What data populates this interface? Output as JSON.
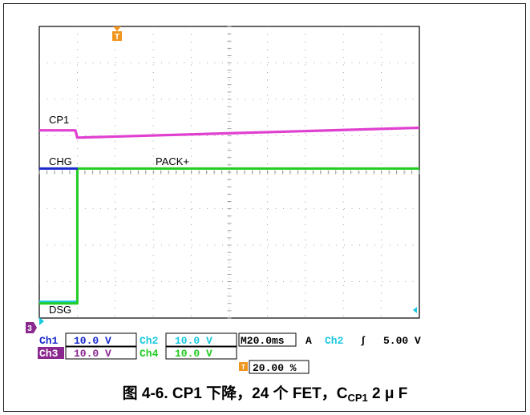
{
  "caption": {
    "prefix": "图 4-6. CP1 下降，24 个 FET，C",
    "subscript": "CP1",
    "suffix": " 2 μ F"
  },
  "chart_data": {
    "type": "line",
    "title": "",
    "x_unit": "ms",
    "x_range": [
      -20,
      180
    ],
    "y_unit": "div",
    "y_range": [
      -4,
      4
    ],
    "grid": true,
    "trigger_marker": "T",
    "series": [
      {
        "name": "CP1",
        "color": "#e040d0",
        "x": [
          -20,
          -1,
          0,
          180
        ],
        "y": [
          1.15,
          1.15,
          0.95,
          1.22
        ]
      },
      {
        "name": "CHG",
        "color": "#1a2acc",
        "x": [
          -20,
          0,
          0.2
        ],
        "y": [
          0.1,
          0.1,
          0.1
        ]
      },
      {
        "name": "PACK+",
        "color": "#22cc22",
        "x": [
          -20,
          0,
          0,
          180
        ],
        "y": [
          -3.6,
          -3.6,
          0.1,
          0.1
        ]
      },
      {
        "name": "DSG",
        "color": "#19c8e0",
        "x": [
          -20,
          0,
          0
        ],
        "y": [
          -3.55,
          -3.55,
          0.12
        ]
      }
    ]
  },
  "readout": {
    "ch1": {
      "label": "Ch1",
      "value": "10.0 V"
    },
    "ch2": {
      "label": "Ch2",
      "value": "10.0 V"
    },
    "ch3": {
      "label": "Ch3",
      "value": "10.0 V"
    },
    "ch4": {
      "label": "Ch4",
      "value": "10.0 V"
    },
    "timebase": "M20.0ms",
    "trigger_mode": "A",
    "trigger_source": "Ch2",
    "trigger_slope": "ʃ",
    "trigger_level": "5.00 V",
    "trigger_position": "20.00 %",
    "marker_3": "3"
  },
  "colors": {
    "ch1": "#e040d0",
    "ch2": "#19c8e0",
    "ch3": "#1a2acc",
    "ch4": "#22cc22",
    "ch3_badge": "#8a2890",
    "trigger": "#f0961e"
  }
}
